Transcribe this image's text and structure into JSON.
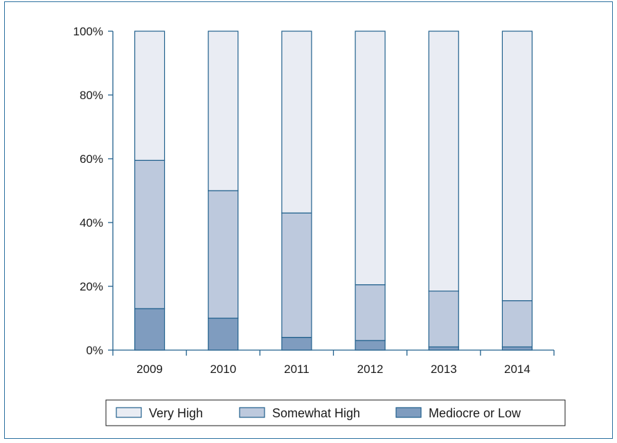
{
  "chart_data": {
    "type": "bar",
    "stacked": true,
    "percent_stacked": true,
    "categories": [
      "2009",
      "2010",
      "2011",
      "2012",
      "2013",
      "2014"
    ],
    "series": [
      {
        "name": "Mediocre or Low",
        "values": [
          13,
          10,
          4,
          3,
          1,
          1
        ],
        "color": "#7f9cbf"
      },
      {
        "name": "Somewhat High",
        "values": [
          46.5,
          40,
          39,
          17.5,
          17.5,
          14.5
        ],
        "color": "#bdc9dd"
      },
      {
        "name": "Very High",
        "values": [
          40.5,
          50,
          57,
          79.5,
          81.5,
          84.5
        ],
        "color": "#e9ecf3"
      }
    ],
    "bar_stroke": "#1f5f8c",
    "axis_color": "#1f5f8c",
    "frame_color": "#2a6f9f",
    "ylim": [
      0,
      100
    ],
    "yticks": [
      "0%",
      "20%",
      "40%",
      "60%",
      "80%",
      "100%"
    ],
    "ytick_values": [
      0,
      20,
      40,
      60,
      80,
      100
    ],
    "grid": false,
    "legend_position": "bottom",
    "legend_order": [
      "Very High",
      "Somewhat High",
      "Mediocre or Low"
    ],
    "title": "",
    "xlabel": "",
    "ylabel": ""
  }
}
